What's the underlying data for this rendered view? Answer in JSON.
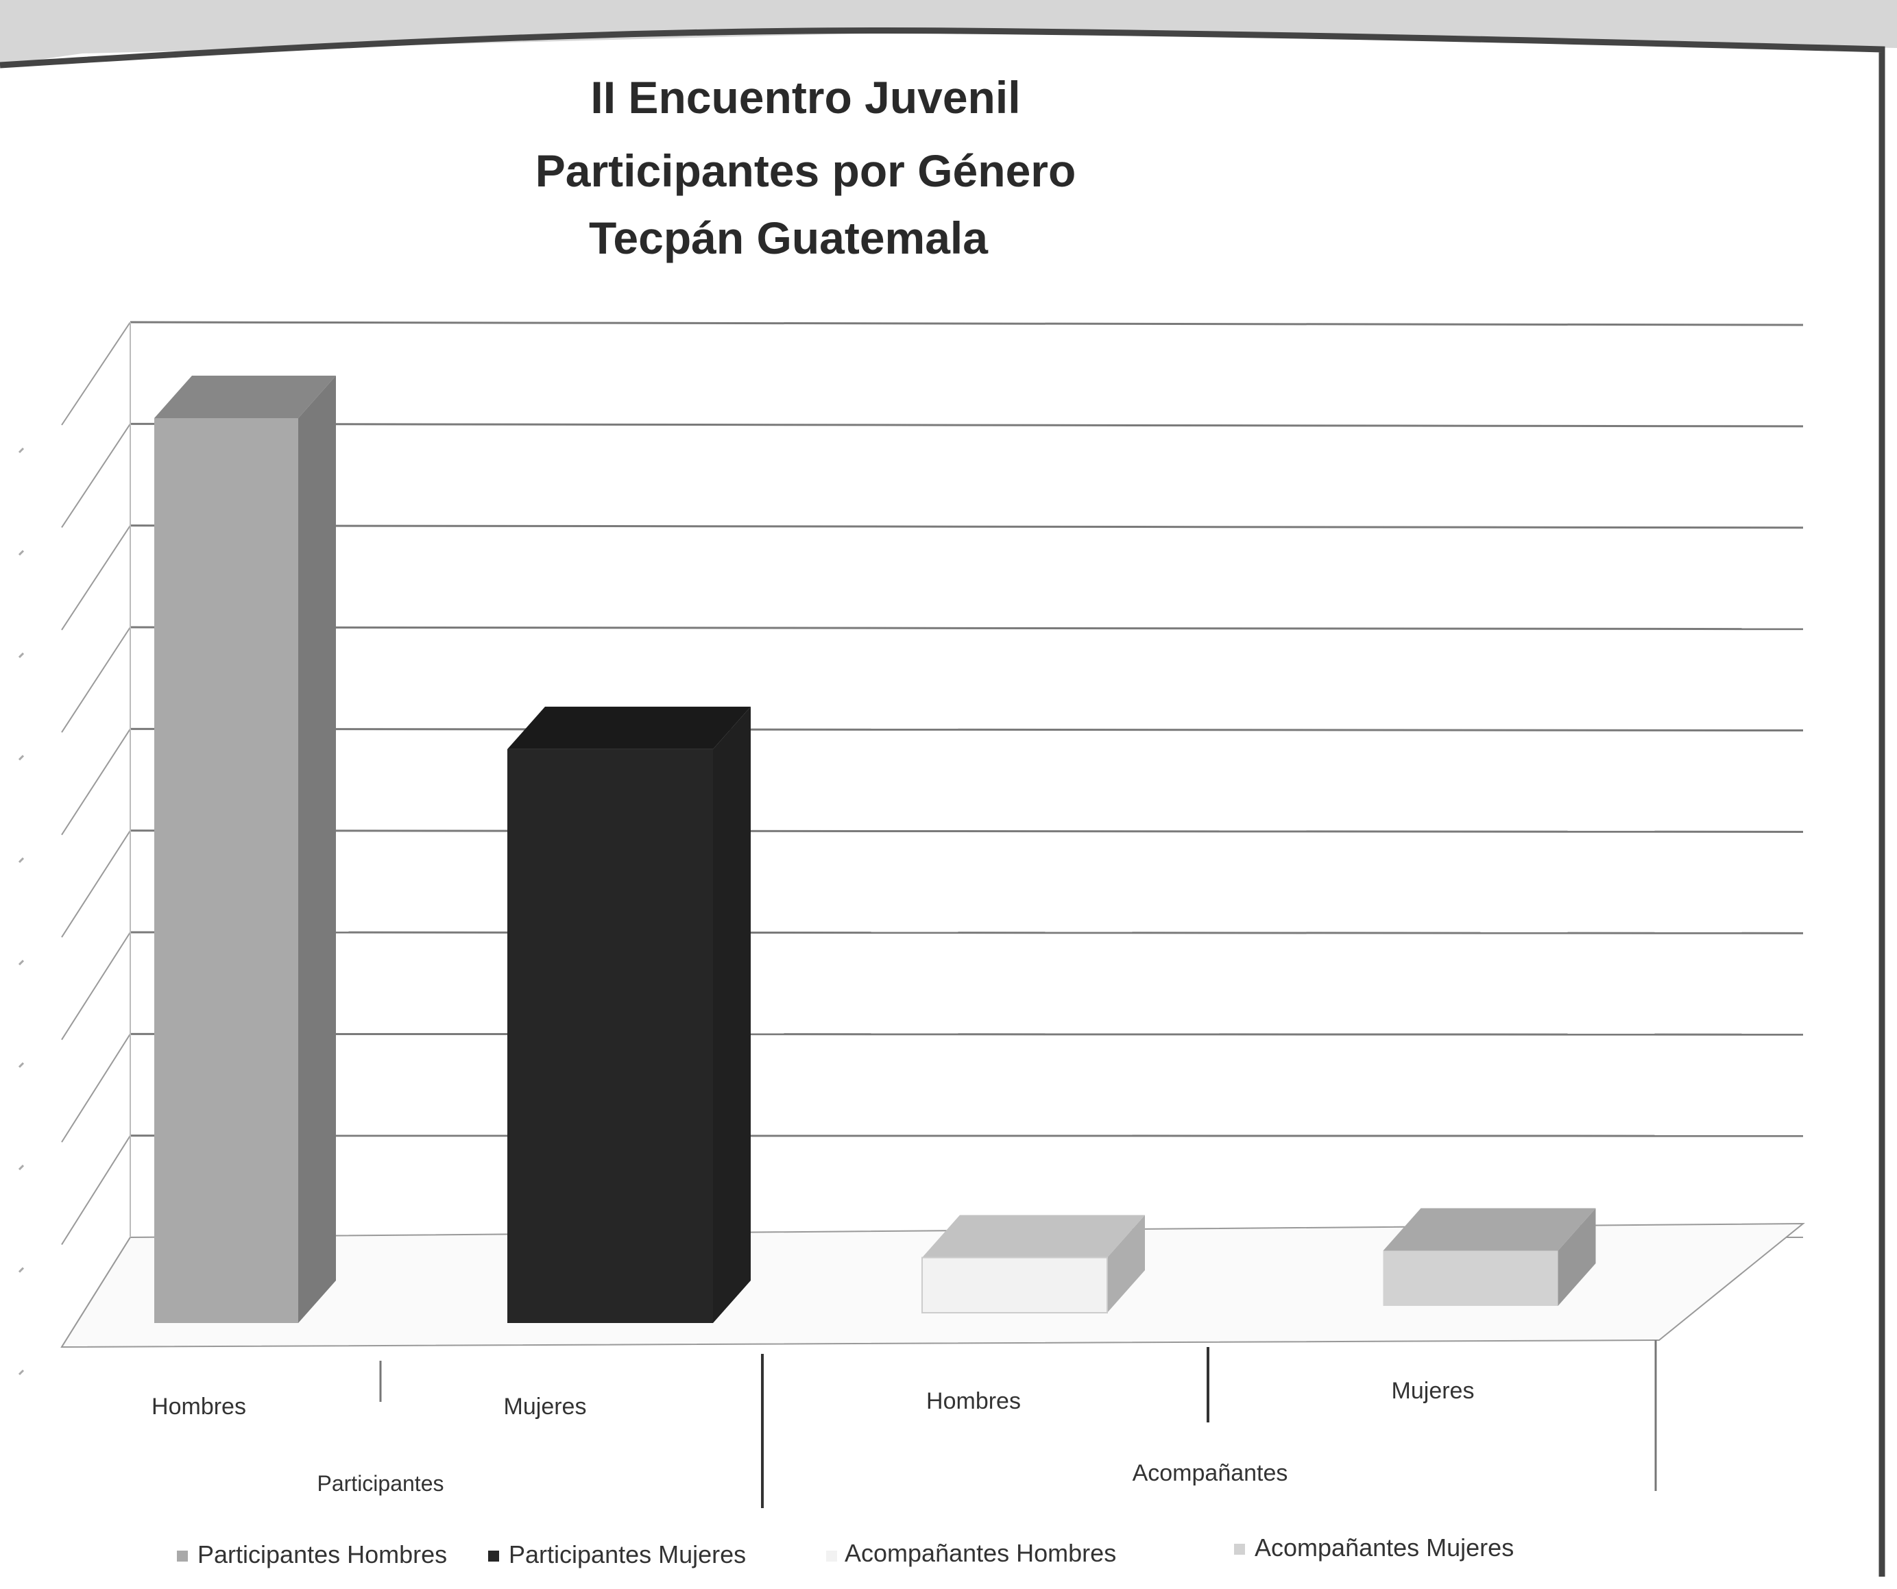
{
  "chart_data": {
    "type": "bar",
    "title": [
      "II Encuentro Juvenil",
      "Participantes por Género",
      "Tecpán Guatemala"
    ],
    "groups": [
      {
        "label": "Participantes",
        "categories": [
          "Hombres",
          "Mujeres"
        ]
      },
      {
        "label": "Acompañantes",
        "categories": [
          "Hombres",
          "Mujeres"
        ]
      }
    ],
    "series": [
      {
        "name": "Participantes Hombres",
        "group": 0,
        "category": "Hombres",
        "value": 8.2,
        "color": "#a9a9a9"
      },
      {
        "name": "Participantes Mujeres",
        "group": 0,
        "category": "Mujeres",
        "value": 5.2,
        "color": "#262626"
      },
      {
        "name": "Acompañantes Hombres",
        "group": 1,
        "category": "Hombres",
        "value": 0.5,
        "color": "#f2f2f2"
      },
      {
        "name": "Acompañantes Mujeres",
        "group": 1,
        "category": "Mujeres",
        "value": 0.5,
        "color": "#d2d2d2"
      }
    ],
    "ylim": [
      0,
      9
    ],
    "grid": true,
    "gridline_count": 9,
    "legend_position": "bottom",
    "style": "3d-column"
  }
}
